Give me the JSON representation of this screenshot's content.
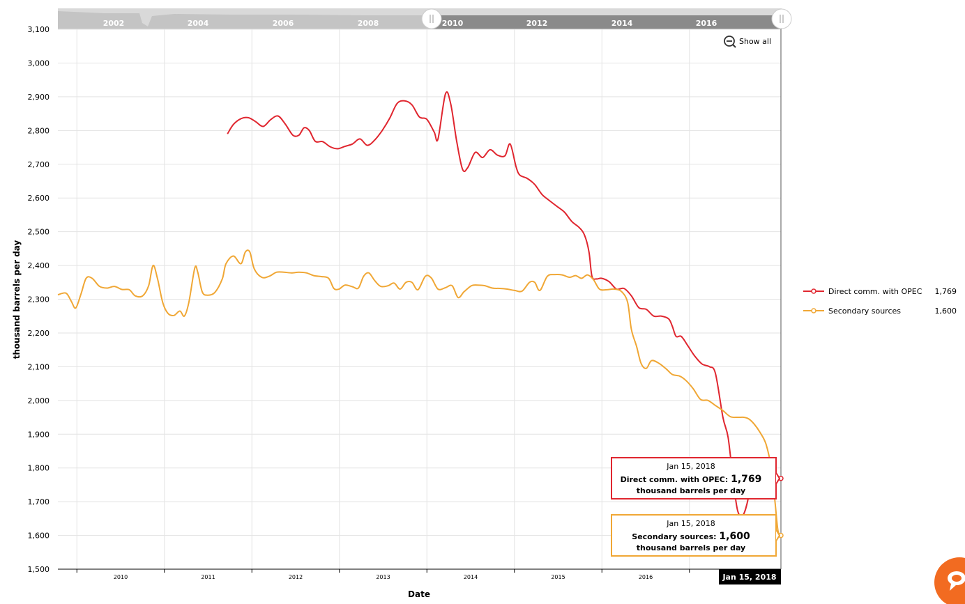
{
  "chart_data": {
    "type": "line",
    "xlabel": "Date",
    "ylabel": "thousand barrels per day",
    "ylim": [
      1500,
      3100
    ],
    "y_ticks": [
      1500,
      1600,
      1700,
      1800,
      1900,
      2000,
      2100,
      2200,
      2300,
      2400,
      2500,
      2600,
      2700,
      2800,
      2900,
      3000,
      3100
    ],
    "y_tick_labels": [
      "1,500",
      "1,600",
      "1,700",
      "1,800",
      "1,900",
      "2,000",
      "2,100",
      "2,200",
      "2,300",
      "2,400",
      "2,500",
      "2,600",
      "2,700",
      "2,800",
      "2,900",
      "3,000",
      "3,100"
    ],
    "x_range": [
      "2009-06",
      "2018-01"
    ],
    "x_ticks": [
      "2010",
      "2011",
      "2012",
      "2013",
      "2014",
      "2015",
      "2016"
    ],
    "grid": true,
    "legend_position": "right",
    "navigator": {
      "labels": [
        "2002",
        "2004",
        "2006",
        "2008",
        "2010",
        "2012",
        "2014",
        "2016"
      ],
      "selected_range": [
        "2009-06",
        "2018-01"
      ]
    },
    "show_all_label": "Show all",
    "cursor_date": "Jan 15, 2018",
    "series": [
      {
        "name": "Direct comm. with OPEC",
        "color": "#e0262f",
        "legend_value": "1,769",
        "points": [
          [
            2011.62,
            2790
          ],
          [
            2011.7,
            2818
          ],
          [
            2011.8,
            2835
          ],
          [
            2011.9,
            2838
          ],
          [
            2012.0,
            2826
          ],
          [
            2012.1,
            2812
          ],
          [
            2012.2,
            2832
          ],
          [
            2012.3,
            2843
          ],
          [
            2012.4,
            2818
          ],
          [
            2012.5,
            2786
          ],
          [
            2012.58,
            2786
          ],
          [
            2012.65,
            2808
          ],
          [
            2012.72,
            2800
          ],
          [
            2012.8,
            2768
          ],
          [
            2012.9,
            2767
          ],
          [
            2013.0,
            2752
          ],
          [
            2013.1,
            2746
          ],
          [
            2013.2,
            2753
          ],
          [
            2013.3,
            2760
          ],
          [
            2013.4,
            2775
          ],
          [
            2013.5,
            2756
          ],
          [
            2013.6,
            2772
          ],
          [
            2013.7,
            2800
          ],
          [
            2013.8,
            2836
          ],
          [
            2013.9,
            2880
          ],
          [
            2014.0,
            2888
          ],
          [
            2014.1,
            2876
          ],
          [
            2014.2,
            2840
          ],
          [
            2014.3,
            2833
          ],
          [
            2014.4,
            2795
          ],
          [
            2014.45,
            2775
          ],
          [
            2014.55,
            2908
          ],
          [
            2014.62,
            2880
          ],
          [
            2014.7,
            2770
          ],
          [
            2014.78,
            2685
          ],
          [
            2014.85,
            2690
          ],
          [
            2014.95,
            2735
          ],
          [
            2015.05,
            2720
          ],
          [
            2015.15,
            2743
          ],
          [
            2015.25,
            2727
          ],
          [
            2015.35,
            2725
          ],
          [
            2015.42,
            2760
          ],
          [
            2015.5,
            2692
          ],
          [
            2015.55,
            2668
          ],
          [
            2015.65,
            2658
          ],
          [
            2015.75,
            2640
          ],
          [
            2015.85,
            2610
          ],
          [
            2015.95,
            2592
          ],
          [
            2016.05,
            2575
          ],
          [
            2016.15,
            2558
          ],
          [
            2016.25,
            2530
          ],
          [
            2016.35,
            2512
          ],
          [
            2016.42,
            2490
          ],
          [
            2016.48,
            2440
          ],
          [
            2016.52,
            2368
          ],
          [
            2016.58,
            2360
          ],
          [
            2016.65,
            2362
          ],
          [
            2016.75,
            2352
          ],
          [
            2016.85,
            2330
          ],
          [
            2016.95,
            2332
          ],
          [
            2017.05,
            2310
          ],
          [
            2017.15,
            2275
          ],
          [
            2017.25,
            2270
          ],
          [
            2017.35,
            2250
          ],
          [
            2017.45,
            2250
          ],
          [
            2017.55,
            2242
          ],
          [
            2017.6,
            2220
          ],
          [
            2017.65,
            2190
          ],
          [
            2017.72,
            2190
          ],
          [
            2017.8,
            2165
          ],
          [
            2017.9,
            2132
          ],
          [
            2018.0,
            2108
          ],
          [
            2018.1,
            2100
          ],
          [
            2018.18,
            2080
          ],
          [
            2018.28,
            1950
          ],
          [
            2018.35,
            1890
          ],
          [
            2018.42,
            1760
          ],
          [
            2018.48,
            1672
          ],
          [
            2018.55,
            1660
          ],
          [
            2018.62,
            1710
          ],
          [
            2018.65,
            1769
          ]
        ]
      },
      {
        "name": "Secondary sources",
        "color": "#f0a735",
        "legend_value": "1,600",
        "points": [
          [
            2009.34,
            2313
          ],
          [
            2009.45,
            2318
          ],
          [
            2009.52,
            2294
          ],
          [
            2009.58,
            2274
          ],
          [
            2009.65,
            2315
          ],
          [
            2009.72,
            2362
          ],
          [
            2009.8,
            2362
          ],
          [
            2009.9,
            2338
          ],
          [
            2010.0,
            2333
          ],
          [
            2010.1,
            2338
          ],
          [
            2010.2,
            2329
          ],
          [
            2010.3,
            2328
          ],
          [
            2010.38,
            2310
          ],
          [
            2010.48,
            2310
          ],
          [
            2010.56,
            2340
          ],
          [
            2010.62,
            2400
          ],
          [
            2010.68,
            2360
          ],
          [
            2010.75,
            2290
          ],
          [
            2010.82,
            2258
          ],
          [
            2010.9,
            2252
          ],
          [
            2010.98,
            2265
          ],
          [
            2011.04,
            2250
          ],
          [
            2011.1,
            2290
          ],
          [
            2011.18,
            2392
          ],
          [
            2011.22,
            2380
          ],
          [
            2011.28,
            2322
          ],
          [
            2011.35,
            2312
          ],
          [
            2011.45,
            2320
          ],
          [
            2011.55,
            2360
          ],
          [
            2011.6,
            2405
          ],
          [
            2011.7,
            2428
          ],
          [
            2011.8,
            2405
          ],
          [
            2011.86,
            2440
          ],
          [
            2011.92,
            2440
          ],
          [
            2011.98,
            2390
          ],
          [
            2012.08,
            2365
          ],
          [
            2012.18,
            2368
          ],
          [
            2012.28,
            2380
          ],
          [
            2012.38,
            2380
          ],
          [
            2012.48,
            2378
          ],
          [
            2012.58,
            2380
          ],
          [
            2012.68,
            2378
          ],
          [
            2012.78,
            2370
          ],
          [
            2012.88,
            2367
          ],
          [
            2012.98,
            2362
          ],
          [
            2013.05,
            2332
          ],
          [
            2013.12,
            2330
          ],
          [
            2013.2,
            2342
          ],
          [
            2013.3,
            2337
          ],
          [
            2013.38,
            2333
          ],
          [
            2013.45,
            2368
          ],
          [
            2013.52,
            2378
          ],
          [
            2013.6,
            2355
          ],
          [
            2013.68,
            2338
          ],
          [
            2013.78,
            2340
          ],
          [
            2013.86,
            2348
          ],
          [
            2013.94,
            2330
          ],
          [
            2014.02,
            2350
          ],
          [
            2014.1,
            2350
          ],
          [
            2014.18,
            2328
          ],
          [
            2014.28,
            2368
          ],
          [
            2014.36,
            2363
          ],
          [
            2014.45,
            2330
          ],
          [
            2014.55,
            2334
          ],
          [
            2014.64,
            2340
          ],
          [
            2014.72,
            2305
          ],
          [
            2014.8,
            2322
          ],
          [
            2014.9,
            2340
          ],
          [
            2014.98,
            2342
          ],
          [
            2015.08,
            2340
          ],
          [
            2015.18,
            2333
          ],
          [
            2015.28,
            2332
          ],
          [
            2015.38,
            2330
          ],
          [
            2015.48,
            2326
          ],
          [
            2015.58,
            2324
          ],
          [
            2015.68,
            2350
          ],
          [
            2015.75,
            2350
          ],
          [
            2015.82,
            2326
          ],
          [
            2015.92,
            2368
          ],
          [
            2016.02,
            2373
          ],
          [
            2016.12,
            2372
          ],
          [
            2016.22,
            2365
          ],
          [
            2016.3,
            2370
          ],
          [
            2016.38,
            2362
          ],
          [
            2016.46,
            2372
          ],
          [
            2016.54,
            2358
          ],
          [
            2016.62,
            2330
          ],
          [
            2016.72,
            2328
          ],
          [
            2016.82,
            2330
          ],
          [
            2016.92,
            2322
          ],
          [
            2017.0,
            2290
          ],
          [
            2017.05,
            2210
          ],
          [
            2017.12,
            2160
          ],
          [
            2017.18,
            2110
          ],
          [
            2017.25,
            2095
          ],
          [
            2017.32,
            2118
          ],
          [
            2017.42,
            2110
          ],
          [
            2017.52,
            2093
          ],
          [
            2017.6,
            2077
          ],
          [
            2017.7,
            2072
          ],
          [
            2017.78,
            2060
          ],
          [
            2017.88,
            2035
          ],
          [
            2017.98,
            2003
          ],
          [
            2018.08,
            2000
          ],
          [
            2018.18,
            1985
          ],
          [
            2018.28,
            1970
          ],
          [
            2018.38,
            1952
          ],
          [
            2018.48,
            1950
          ],
          [
            2018.56,
            1950
          ],
          [
            2018.63,
            1945
          ],
          [
            2018.7,
            1930
          ],
          [
            2018.78,
            1905
          ],
          [
            2018.86,
            1870
          ],
          [
            2018.93,
            1800
          ],
          [
            2018.98,
            1700
          ],
          [
            2019.02,
            1615
          ],
          [
            2019.06,
            1600
          ]
        ]
      }
    ],
    "tooltips": [
      {
        "date": "Jan 15, 2018",
        "series": "Direct comm. with OPEC:",
        "value": "1,769",
        "unit": "thousand barrels per day",
        "color": "#e0262f"
      },
      {
        "date": "Jan 15, 2018",
        "series": "Secondary sources:",
        "value": "1,600",
        "unit": "thousand barrels per day",
        "color": "#f0a735"
      }
    ]
  }
}
